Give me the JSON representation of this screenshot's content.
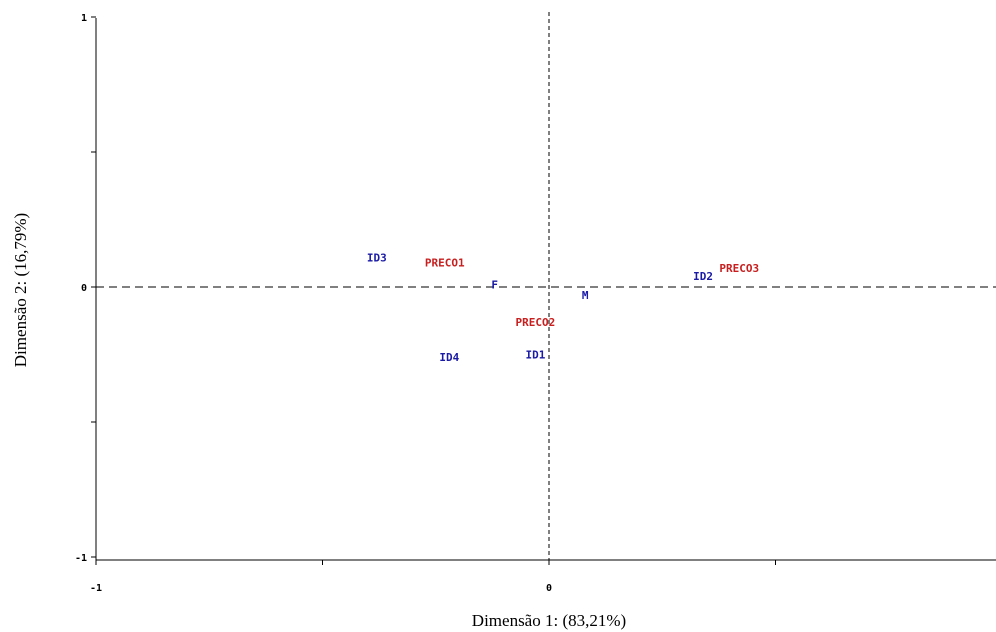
{
  "chart_data": {
    "type": "scatter",
    "xlabel": "Dimensão 1: (83,21%)",
    "ylabel": "Dimensão 2: (16,79%)",
    "xlim": [
      -1,
      1
    ],
    "ylim": [
      -1,
      1
    ],
    "x_ticks": [
      {
        "value": -1,
        "label": "-1"
      },
      {
        "value": -0.5,
        "label": ""
      },
      {
        "value": 0,
        "label": "0"
      },
      {
        "value": 0.5,
        "label": ""
      }
    ],
    "y_ticks": [
      {
        "value": 1,
        "label": "1"
      },
      {
        "value": 0.5,
        "label": ""
      },
      {
        "value": 0,
        "label": "0"
      },
      {
        "value": -0.5,
        "label": ""
      },
      {
        "value": -1,
        "label": "-1"
      }
    ],
    "reference_lines": {
      "x": 0,
      "y": 0,
      "style": "dashed"
    },
    "grid": false,
    "series": [
      {
        "color": "#1a1aa6",
        "points": [
          {
            "label": "ID3",
            "x": -0.38,
            "y": 0.11
          },
          {
            "label": "F",
            "x": -0.12,
            "y": 0.01
          },
          {
            "label": "M",
            "x": 0.08,
            "y": -0.03
          },
          {
            "label": "ID4",
            "x": -0.22,
            "y": -0.26
          },
          {
            "label": "ID1",
            "x": -0.03,
            "y": -0.25
          },
          {
            "label": "ID2",
            "x": 0.34,
            "y": 0.04
          }
        ]
      },
      {
        "color": "#c81e1e",
        "points": [
          {
            "label": "PRECO1",
            "x": -0.23,
            "y": 0.09
          },
          {
            "label": "PRECO2",
            "x": -0.03,
            "y": -0.13
          },
          {
            "label": "PRECO3",
            "x": 0.42,
            "y": 0.07
          }
        ]
      }
    ]
  }
}
